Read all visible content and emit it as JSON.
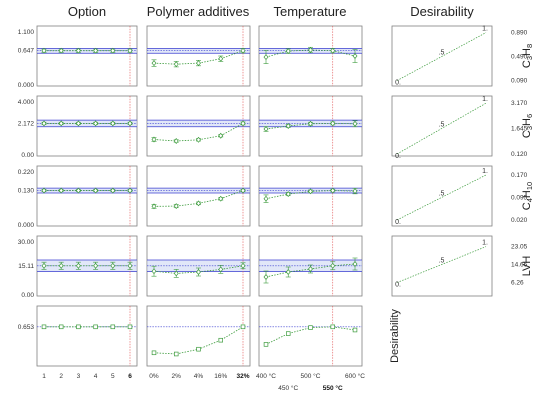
{
  "chart_data": {
    "type": "line",
    "column_titles": [
      "Option",
      "Polymer additives",
      "Temperature",
      "Desirability"
    ],
    "colors": {
      "points": "#3c9b3c",
      "band": "#3b3fd0",
      "band_fill": "#c9d4f2",
      "optimum_line": "#e05050",
      "frame": "#808080"
    },
    "factors": [
      {
        "name": "Option",
        "categories": [
          "1",
          "2",
          "3",
          "4",
          "5",
          "6"
        ],
        "optimum_index": 5
      },
      {
        "name": "Polymer additives",
        "categories": [
          "0%",
          "2%",
          "4%",
          "16%",
          "32%"
        ],
        "optimum_index": 4
      },
      {
        "name": "Temperature",
        "categories": [
          "400 °C",
          "450 °C",
          "500 °C",
          "550 °C",
          "600 °C"
        ],
        "optimum_index": 3
      }
    ],
    "responses": [
      {
        "label_main": "C",
        "label_parts": [
          [
            "C",
            ""
          ],
          [
            "3",
            "sub"
          ],
          [
            "H",
            ""
          ],
          [
            "8",
            "sub"
          ]
        ],
        "y_ticks": [
          "0.000",
          "0.647",
          "1.100"
        ],
        "ylim": [
          0,
          1.1
        ],
        "optimum_value": 0.647,
        "band": [
          0.6,
          0.69
        ],
        "series": [
          {
            "factor": "Option",
            "values": [
              0.647,
              0.647,
              0.647,
              0.647,
              0.647,
              0.647
            ],
            "err": [
              0.03,
              0.03,
              0.03,
              0.03,
              0.03,
              0.03
            ]
          },
          {
            "factor": "Polymer additives",
            "values": [
              0.42,
              0.4,
              0.42,
              0.5,
              0.647
            ],
            "err": [
              0.06,
              0.05,
              0.05,
              0.05,
              0.04
            ]
          },
          {
            "factor": "Temperature",
            "values": [
              0.53,
              0.64,
              0.66,
              0.647,
              0.55
            ],
            "err": [
              0.12,
              0.04,
              0.05,
              0.04,
              0.12
            ]
          }
        ],
        "desirability": {
          "y_ticks": [
            "0.090",
            "0.490",
            "0.890"
          ],
          "ylim": [
            0.0,
            1.0
          ],
          "labels": [
            "0.",
            ".5",
            "1."
          ]
        }
      },
      {
        "label_main": "C",
        "label_parts": [
          [
            "C",
            ""
          ],
          [
            "3",
            "sub"
          ],
          [
            "H",
            ""
          ],
          [
            "6",
            "sub"
          ]
        ],
        "y_ticks": [
          "0.00",
          "2.172",
          "4.000"
        ],
        "ylim": [
          0,
          4
        ],
        "optimum_value": 2.172,
        "band": [
          1.95,
          2.39
        ],
        "series": [
          {
            "factor": "Option",
            "values": [
              2.172,
              2.172,
              2.172,
              2.172,
              2.172,
              2.172
            ],
            "err": [
              0.08,
              0.08,
              0.08,
              0.08,
              0.08,
              0.08
            ]
          },
          {
            "factor": "Polymer additives",
            "values": [
              1.1,
              1.0,
              1.08,
              1.35,
              2.172
            ],
            "err": [
              0.12,
              0.08,
              0.08,
              0.08,
              0.1
            ]
          },
          {
            "factor": "Temperature",
            "values": [
              1.8,
              2.0,
              2.15,
              2.172,
              2.15
            ],
            "err": [
              0.15,
              0.1,
              0.1,
              0.1,
              0.2
            ]
          }
        ],
        "desirability": {
          "y_ticks": [
            "0.120",
            "1.645",
            "3.170"
          ],
          "ylim": [
            0.0,
            3.6
          ],
          "labels": [
            "0.",
            ".5",
            "1."
          ]
        }
      },
      {
        "label_main": "C",
        "label_parts": [
          [
            "C",
            ""
          ],
          [
            "4",
            "sub"
          ],
          [
            "H",
            ""
          ],
          [
            "10",
            "sub"
          ]
        ],
        "y_ticks": [
          "0.000",
          "0.130",
          "0.220"
        ],
        "ylim": [
          0,
          0.22
        ],
        "optimum_value": 0.13,
        "band": [
          0.121,
          0.139
        ],
        "series": [
          {
            "factor": "Option",
            "values": [
              0.13,
              0.13,
              0.13,
              0.13,
              0.13,
              0.13
            ],
            "err": [
              0.004,
              0.004,
              0.004,
              0.004,
              0.004,
              0.004
            ]
          },
          {
            "factor": "Polymer additives",
            "values": [
              0.072,
              0.073,
              0.083,
              0.1,
              0.13
            ],
            "err": [
              0.007,
              0.006,
              0.005,
              0.005,
              0.004
            ]
          },
          {
            "factor": "Temperature",
            "values": [
              0.1,
              0.117,
              0.127,
              0.13,
              0.128
            ],
            "err": [
              0.014,
              0.006,
              0.005,
              0.005,
              0.01
            ]
          }
        ],
        "desirability": {
          "y_ticks": [
            "0.020",
            "0.095",
            "0.170"
          ],
          "ylim": [
            0.0,
            0.2
          ],
          "labels": [
            "0.",
            ".5",
            "1."
          ]
        }
      },
      {
        "label_main": "LVH",
        "label_parts": [
          [
            "LVH",
            ""
          ]
        ],
        "y_ticks": [
          "0.00",
          "15.11",
          "30.00"
        ],
        "ylim": [
          0,
          30
        ],
        "optimum_value": 15.11,
        "band": [
          12.2,
          18.0
        ],
        "series": [
          {
            "factor": "Option",
            "values": [
              15.11,
              15.11,
              15.11,
              15.11,
              15.11,
              15.11
            ],
            "err": [
              1.8,
              1.8,
              1.8,
              1.8,
              1.8,
              1.8
            ]
          },
          {
            "factor": "Polymer additives",
            "values": [
              12.4,
              11.3,
              12.0,
              13.3,
              15.11
            ],
            "err": [
              2.5,
              2.0,
              2.0,
              2.0,
              1.5
            ]
          },
          {
            "factor": "Temperature",
            "values": [
              9.5,
              12.0,
              13.5,
              15.11,
              16.0
            ],
            "err": [
              3.0,
              2.5,
              2.0,
              2.0,
              3.0
            ]
          }
        ],
        "desirability": {
          "y_ticks": [
            "6.26",
            "14.66",
            "23.05"
          ],
          "ylim": [
            0.0,
            28
          ],
          "labels": [
            "0.",
            ".5",
            "1."
          ]
        }
      },
      {
        "label_main": "Desirability",
        "label_parts": [
          [
            "Desirability",
            ""
          ]
        ],
        "y_ticks": [
          "0.653"
        ],
        "ylim": [
          0,
          1
        ],
        "optimum_value": 0.653,
        "band": null,
        "series": [
          {
            "factor": "Option",
            "values": [
              0.653,
              0.653,
              0.653,
              0.653,
              0.653,
              0.653
            ],
            "err": null
          },
          {
            "factor": "Polymer additives",
            "values": [
              0.22,
              0.2,
              0.28,
              0.43,
              0.653
            ],
            "err": null
          },
          {
            "factor": "Temperature",
            "values": [
              0.36,
              0.54,
              0.64,
              0.653,
              0.6
            ],
            "err": null
          }
        ],
        "desirability": null
      }
    ]
  }
}
